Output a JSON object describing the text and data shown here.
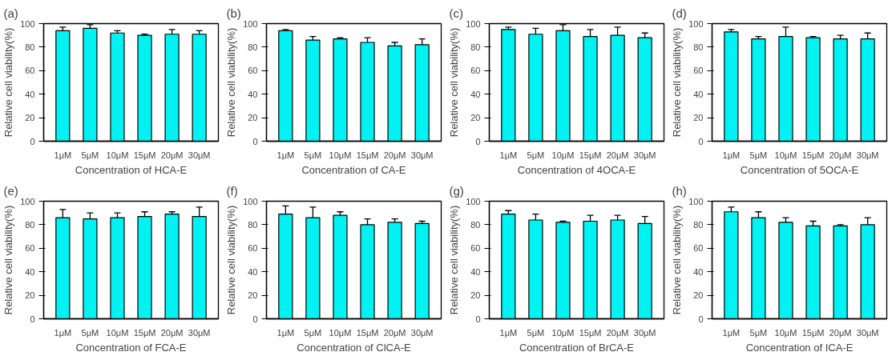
{
  "chart_data": [
    {
      "type": "bar",
      "title": "(a)",
      "xlabel": "Concentration of HCA-E",
      "ylabel": "Relative cell viability(%)",
      "categories": [
        "1μM",
        "5μM",
        "10μM",
        "15μM",
        "20μM",
        "30μM"
      ],
      "values": [
        94,
        96,
        92,
        90,
        91,
        91
      ],
      "errors": [
        3,
        3,
        2,
        1,
        4,
        3
      ],
      "color": "#00f2f2",
      "ylim": [
        0,
        100
      ],
      "yticks": [
        0,
        20,
        40,
        60,
        80,
        100
      ],
      "grid": false
    },
    {
      "type": "bar",
      "title": "(b)",
      "xlabel": "Concentration of CA-E",
      "ylabel": "Relative cell viability(%)",
      "categories": [
        "1μM",
        "5μM",
        "10μM",
        "15μM",
        "20μM",
        "30μM"
      ],
      "values": [
        94,
        86,
        87,
        84,
        81,
        82
      ],
      "errors": [
        1,
        3,
        1,
        4,
        3,
        5
      ],
      "color": "#00f2f2",
      "ylim": [
        0,
        100
      ],
      "yticks": [
        0,
        20,
        40,
        60,
        80,
        100
      ],
      "grid": false
    },
    {
      "type": "bar",
      "title": "(c)",
      "xlabel": "Concentration of 4OCA-E",
      "ylabel": "Relative cell viability(%)",
      "categories": [
        "1μM",
        "5μM",
        "10μM",
        "15μM",
        "20μM",
        "30μM"
      ],
      "values": [
        95,
        91,
        94,
        89,
        90,
        88
      ],
      "errors": [
        2,
        5,
        5,
        6,
        7,
        4
      ],
      "color": "#00f2f2",
      "ylim": [
        0,
        100
      ],
      "yticks": [
        0,
        20,
        40,
        60,
        80,
        100
      ],
      "grid": false
    },
    {
      "type": "bar",
      "title": "(d)",
      "xlabel": "Concentration of 5OCA-E",
      "ylabel": "Relative cell viability(%)",
      "categories": [
        "1μM",
        "5μM",
        "10μM",
        "15μM",
        "20μM",
        "30μM"
      ],
      "values": [
        93,
        87,
        89,
        88,
        87,
        87
      ],
      "errors": [
        2,
        2,
        8,
        1,
        3,
        5
      ],
      "color": "#00f2f2",
      "ylim": [
        0,
        100
      ],
      "yticks": [
        0,
        20,
        40,
        60,
        80,
        100
      ],
      "grid": false
    },
    {
      "type": "bar",
      "title": "(e)",
      "xlabel": "Concentration of FCA-E",
      "ylabel": "Relative cell viability(%)",
      "categories": [
        "1μM",
        "5μM",
        "10μM",
        "15μM",
        "20μM",
        "30μM"
      ],
      "values": [
        86,
        85,
        86,
        87,
        89,
        87
      ],
      "errors": [
        7,
        5,
        4,
        4,
        2,
        8
      ],
      "color": "#00f2f2",
      "ylim": [
        0,
        100
      ],
      "yticks": [
        0,
        20,
        40,
        60,
        80,
        100
      ],
      "grid": false
    },
    {
      "type": "bar",
      "title": "(f)",
      "xlabel": "Concentration of ClCA-E",
      "ylabel": "Relative cell viability(%)",
      "categories": [
        "1μM",
        "5μM",
        "10μM",
        "15μM",
        "20μM",
        "30μM"
      ],
      "values": [
        89,
        86,
        88,
        80,
        82,
        81
      ],
      "errors": [
        7,
        9,
        3,
        5,
        3,
        2
      ],
      "color": "#00f2f2",
      "ylim": [
        0,
        100
      ],
      "yticks": [
        0,
        20,
        40,
        60,
        80,
        100
      ],
      "grid": false
    },
    {
      "type": "bar",
      "title": "(g)",
      "xlabel": "Concentration of BrCA-E",
      "ylabel": "Relative cell viability(%)",
      "categories": [
        "1μM",
        "5μM",
        "10μM",
        "15μM",
        "20μM",
        "30μM"
      ],
      "values": [
        89,
        84,
        82,
        83,
        84,
        81
      ],
      "errors": [
        3,
        5,
        1,
        5,
        4,
        6
      ],
      "color": "#00f2f2",
      "ylim": [
        0,
        100
      ],
      "yticks": [
        0,
        20,
        40,
        60,
        80,
        100
      ],
      "grid": false
    },
    {
      "type": "bar",
      "title": "(h)",
      "xlabel": "Concentration of ICA-E",
      "ylabel": "Relative cell viability(%)",
      "categories": [
        "1μM",
        "5μM",
        "10μM",
        "15μM",
        "20μM",
        "30μM"
      ],
      "values": [
        91,
        86,
        82,
        79,
        79,
        80
      ],
      "errors": [
        4,
        5,
        4,
        4,
        1,
        6
      ],
      "color": "#00f2f2",
      "ylim": [
        0,
        100
      ],
      "yticks": [
        0,
        20,
        40,
        60,
        80,
        100
      ],
      "grid": false
    }
  ]
}
